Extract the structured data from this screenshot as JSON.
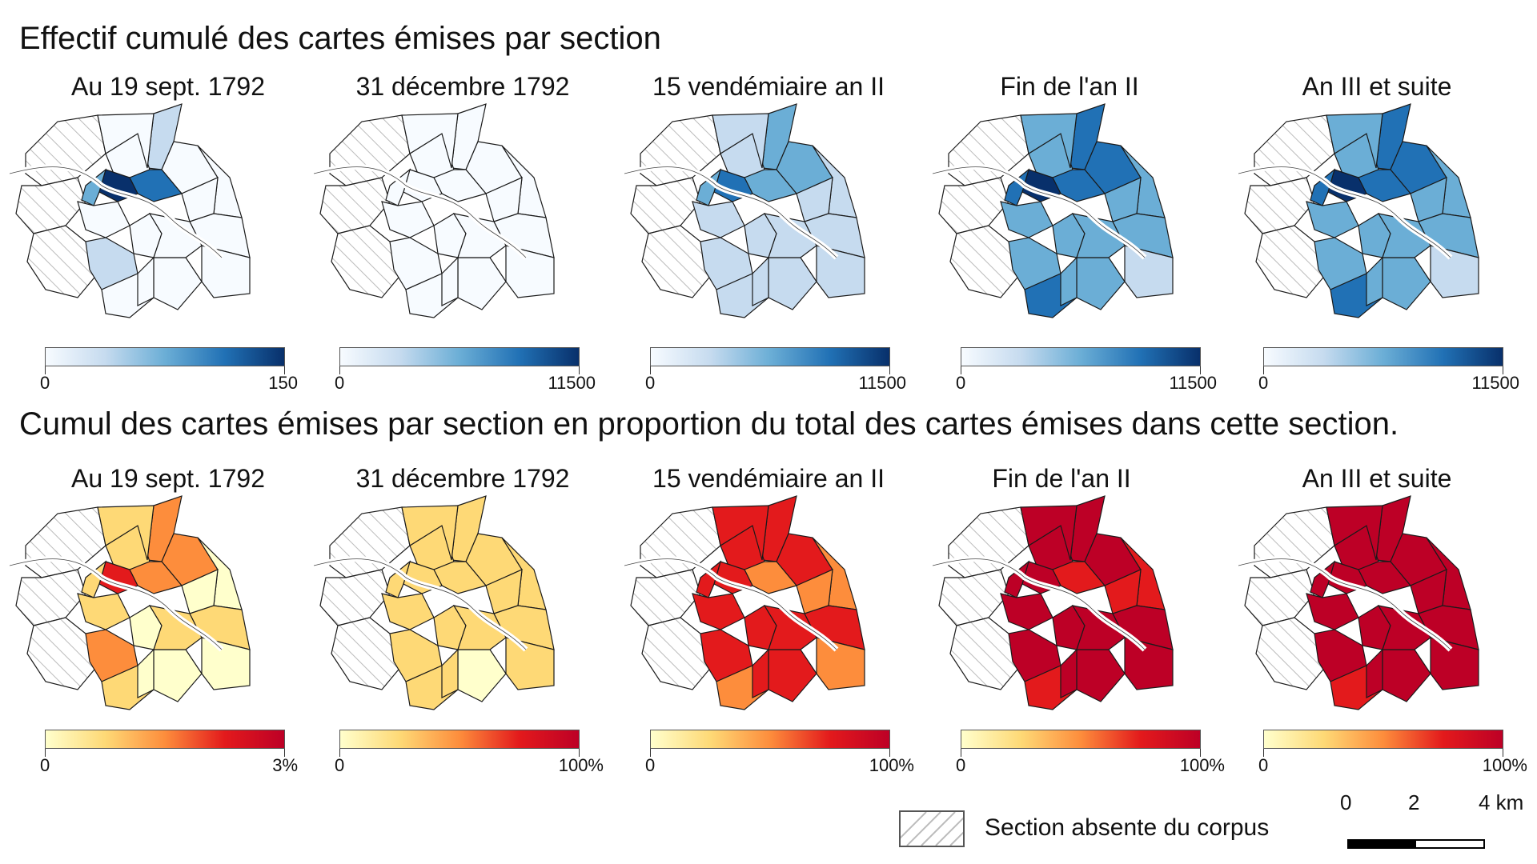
{
  "row1_title": "Effectif cumulé des cartes émises par section",
  "row2_title": "Cumul des cartes émises par section en proportion du total des cartes émises dans cette section.",
  "panels": [
    {
      "title": "Au 19 sept. 1792"
    },
    {
      "title": "31 décembre 1792"
    },
    {
      "title": "15 vendémiaire an II"
    },
    {
      "title": "Fin de l'an II"
    },
    {
      "title": "An III et suite"
    }
  ],
  "legends_row1": [
    {
      "min": "0",
      "max": "150"
    },
    {
      "min": "0",
      "max": "11500"
    },
    {
      "min": "0",
      "max": "11500"
    },
    {
      "min": "0",
      "max": "11500"
    },
    {
      "min": "0",
      "max": "11500"
    }
  ],
  "legends_row2": [
    {
      "min": "0",
      "max": "3%"
    },
    {
      "min": "0",
      "max": "100%"
    },
    {
      "min": "0",
      "max": "100%"
    },
    {
      "min": "0",
      "max": "100%"
    },
    {
      "min": "0",
      "max": "100%"
    }
  ],
  "colors": {
    "blue_scale": [
      "#f7fbff",
      "#c6dbef",
      "#6baed6",
      "#2171b5",
      "#08306b"
    ],
    "red_scale": [
      "#ffffcc",
      "#fed976",
      "#fd8d3c",
      "#e31a1c",
      "#bd0026"
    ],
    "outline": "#1a1a1a",
    "hatch": "#bbbbbb"
  },
  "choropleth_levels": {
    "note_classes": "0 = hatched (absent), 1..5 = color classes",
    "row1": [
      [
        0,
        0,
        0,
        2,
        1,
        1,
        1,
        1,
        1,
        1,
        4,
        5,
        3,
        1,
        1,
        2,
        1,
        1,
        1,
        1,
        1
      ],
      [
        0,
        0,
        0,
        1,
        1,
        1,
        1,
        1,
        1,
        1,
        1,
        1,
        1,
        1,
        1,
        1,
        1,
        1,
        1,
        1,
        1
      ],
      [
        0,
        0,
        0,
        3,
        2,
        2,
        3,
        2,
        2,
        2,
        3,
        4,
        3,
        2,
        2,
        2,
        2,
        2,
        2,
        2,
        2
      ],
      [
        0,
        0,
        0,
        4,
        3,
        3,
        4,
        3,
        3,
        3,
        4,
        5,
        4,
        3,
        3,
        3,
        4,
        3,
        3,
        2,
        3
      ],
      [
        0,
        0,
        0,
        4,
        3,
        3,
        4,
        3,
        3,
        3,
        4,
        5,
        4,
        3,
        3,
        3,
        4,
        3,
        3,
        2,
        3
      ]
    ],
    "row2": [
      [
        0,
        0,
        0,
        3,
        2,
        2,
        3,
        1,
        1,
        2,
        3,
        4,
        2,
        2,
        1,
        3,
        2,
        1,
        2,
        1,
        1
      ],
      [
        0,
        0,
        0,
        2,
        2,
        2,
        2,
        2,
        2,
        2,
        2,
        2,
        2,
        2,
        2,
        2,
        2,
        1,
        2,
        2,
        2
      ],
      [
        0,
        0,
        0,
        4,
        4,
        4,
        4,
        3,
        3,
        4,
        3,
        4,
        4,
        4,
        4,
        4,
        3,
        4,
        4,
        3,
        4
      ],
      [
        0,
        0,
        0,
        5,
        5,
        5,
        5,
        4,
        4,
        5,
        4,
        5,
        5,
        5,
        5,
        5,
        4,
        5,
        5,
        5,
        5
      ],
      [
        0,
        0,
        0,
        5,
        5,
        5,
        5,
        5,
        5,
        5,
        5,
        5,
        5,
        5,
        5,
        5,
        4,
        5,
        5,
        5,
        5
      ]
    ]
  },
  "footer": {
    "hatch_label": "Section absente du corpus",
    "scale_labels": [
      "0",
      "2",
      "4 km"
    ]
  }
}
